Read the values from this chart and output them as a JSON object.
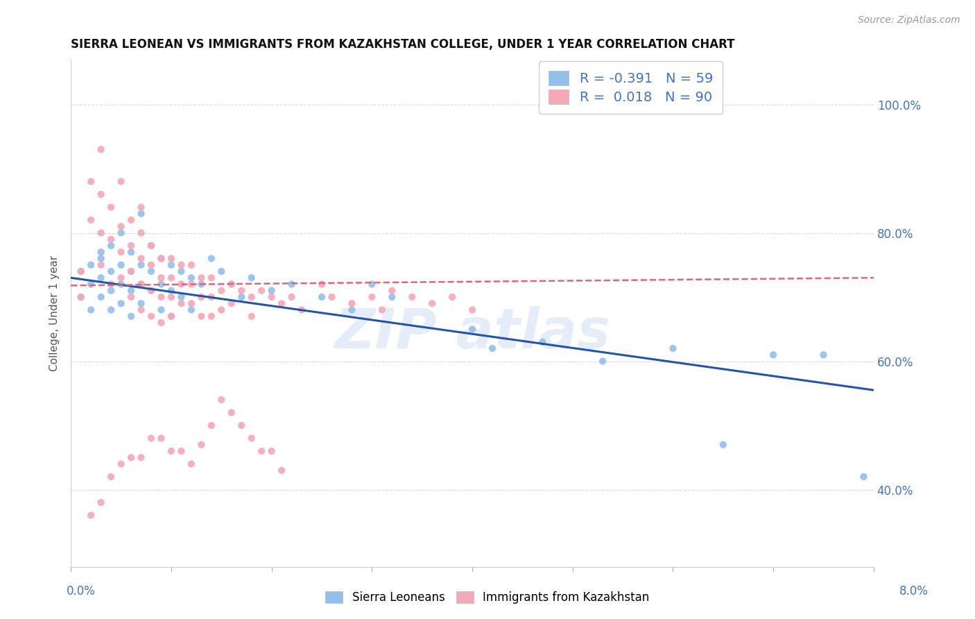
{
  "title": "SIERRA LEONEAN VS IMMIGRANTS FROM KAZAKHSTAN COLLEGE, UNDER 1 YEAR CORRELATION CHART",
  "source": "Source: ZipAtlas.com",
  "ylabel": "College, Under 1 year",
  "xlim": [
    0.0,
    0.08
  ],
  "ylim": [
    0.28,
    1.07
  ],
  "legend_blue_r": "-0.391",
  "legend_blue_n": "59",
  "legend_pink_r": "0.018",
  "legend_pink_n": "90",
  "blue_color": "#92c0eb",
  "pink_color": "#f4a8b8",
  "blue_line_color": "#2255aa",
  "pink_line_color": "#dd6677",
  "background_color": "#ffffff",
  "grid_color": "#d8d8d8",
  "blue_trend_x0": 0.0,
  "blue_trend_y0": 0.73,
  "blue_trend_x1": 0.08,
  "blue_trend_y1": 0.555,
  "pink_trend_x0": 0.0,
  "pink_trend_y0": 0.718,
  "pink_trend_x1": 0.08,
  "pink_trend_y1": 0.73,
  "blue_dots_x": [
    0.001,
    0.001,
    0.002,
    0.002,
    0.002,
    0.003,
    0.003,
    0.003,
    0.003,
    0.004,
    0.004,
    0.004,
    0.004,
    0.005,
    0.005,
    0.005,
    0.005,
    0.006,
    0.006,
    0.006,
    0.006,
    0.007,
    0.007,
    0.007,
    0.007,
    0.008,
    0.008,
    0.008,
    0.009,
    0.009,
    0.009,
    0.01,
    0.01,
    0.01,
    0.011,
    0.011,
    0.012,
    0.012,
    0.013,
    0.014,
    0.015,
    0.016,
    0.017,
    0.018,
    0.02,
    0.022,
    0.025,
    0.028,
    0.03,
    0.032,
    0.04,
    0.042,
    0.047,
    0.053,
    0.06,
    0.065,
    0.07,
    0.075,
    0.079
  ],
  "blue_dots_y": [
    0.74,
    0.7,
    0.75,
    0.72,
    0.68,
    0.76,
    0.73,
    0.7,
    0.77,
    0.74,
    0.71,
    0.78,
    0.68,
    0.75,
    0.72,
    0.8,
    0.69,
    0.74,
    0.71,
    0.77,
    0.67,
    0.75,
    0.72,
    0.83,
    0.69,
    0.74,
    0.71,
    0.78,
    0.76,
    0.72,
    0.68,
    0.75,
    0.71,
    0.67,
    0.74,
    0.7,
    0.73,
    0.68,
    0.72,
    0.76,
    0.74,
    0.72,
    0.7,
    0.73,
    0.71,
    0.72,
    0.7,
    0.68,
    0.72,
    0.7,
    0.65,
    0.62,
    0.63,
    0.6,
    0.62,
    0.47,
    0.61,
    0.61,
    0.42
  ],
  "pink_dots_x": [
    0.001,
    0.001,
    0.002,
    0.002,
    0.003,
    0.003,
    0.003,
    0.003,
    0.004,
    0.004,
    0.004,
    0.005,
    0.005,
    0.005,
    0.005,
    0.006,
    0.006,
    0.006,
    0.006,
    0.007,
    0.007,
    0.007,
    0.007,
    0.007,
    0.008,
    0.008,
    0.008,
    0.008,
    0.009,
    0.009,
    0.009,
    0.009,
    0.01,
    0.01,
    0.01,
    0.01,
    0.011,
    0.011,
    0.011,
    0.012,
    0.012,
    0.012,
    0.013,
    0.013,
    0.013,
    0.014,
    0.014,
    0.014,
    0.015,
    0.015,
    0.016,
    0.016,
    0.017,
    0.018,
    0.018,
    0.019,
    0.02,
    0.021,
    0.022,
    0.023,
    0.025,
    0.026,
    0.028,
    0.03,
    0.031,
    0.032,
    0.034,
    0.036,
    0.038,
    0.04,
    0.015,
    0.017,
    0.019,
    0.021,
    0.013,
    0.011,
    0.009,
    0.007,
    0.005,
    0.003,
    0.002,
    0.004,
    0.006,
    0.008,
    0.01,
    0.012,
    0.014,
    0.016,
    0.018,
    0.02
  ],
  "pink_dots_y": [
    0.74,
    0.7,
    0.88,
    0.82,
    0.93,
    0.86,
    0.8,
    0.75,
    0.84,
    0.79,
    0.72,
    0.81,
    0.77,
    0.73,
    0.88,
    0.82,
    0.78,
    0.74,
    0.7,
    0.84,
    0.8,
    0.76,
    0.72,
    0.68,
    0.78,
    0.75,
    0.71,
    0.67,
    0.76,
    0.73,
    0.7,
    0.66,
    0.76,
    0.73,
    0.7,
    0.67,
    0.75,
    0.72,
    0.69,
    0.75,
    0.72,
    0.69,
    0.73,
    0.7,
    0.67,
    0.73,
    0.7,
    0.67,
    0.71,
    0.68,
    0.72,
    0.69,
    0.71,
    0.7,
    0.67,
    0.71,
    0.7,
    0.69,
    0.7,
    0.68,
    0.72,
    0.7,
    0.69,
    0.7,
    0.68,
    0.71,
    0.7,
    0.69,
    0.7,
    0.68,
    0.54,
    0.5,
    0.46,
    0.43,
    0.47,
    0.46,
    0.48,
    0.45,
    0.44,
    0.38,
    0.36,
    0.42,
    0.45,
    0.48,
    0.46,
    0.44,
    0.5,
    0.52,
    0.48,
    0.46
  ]
}
